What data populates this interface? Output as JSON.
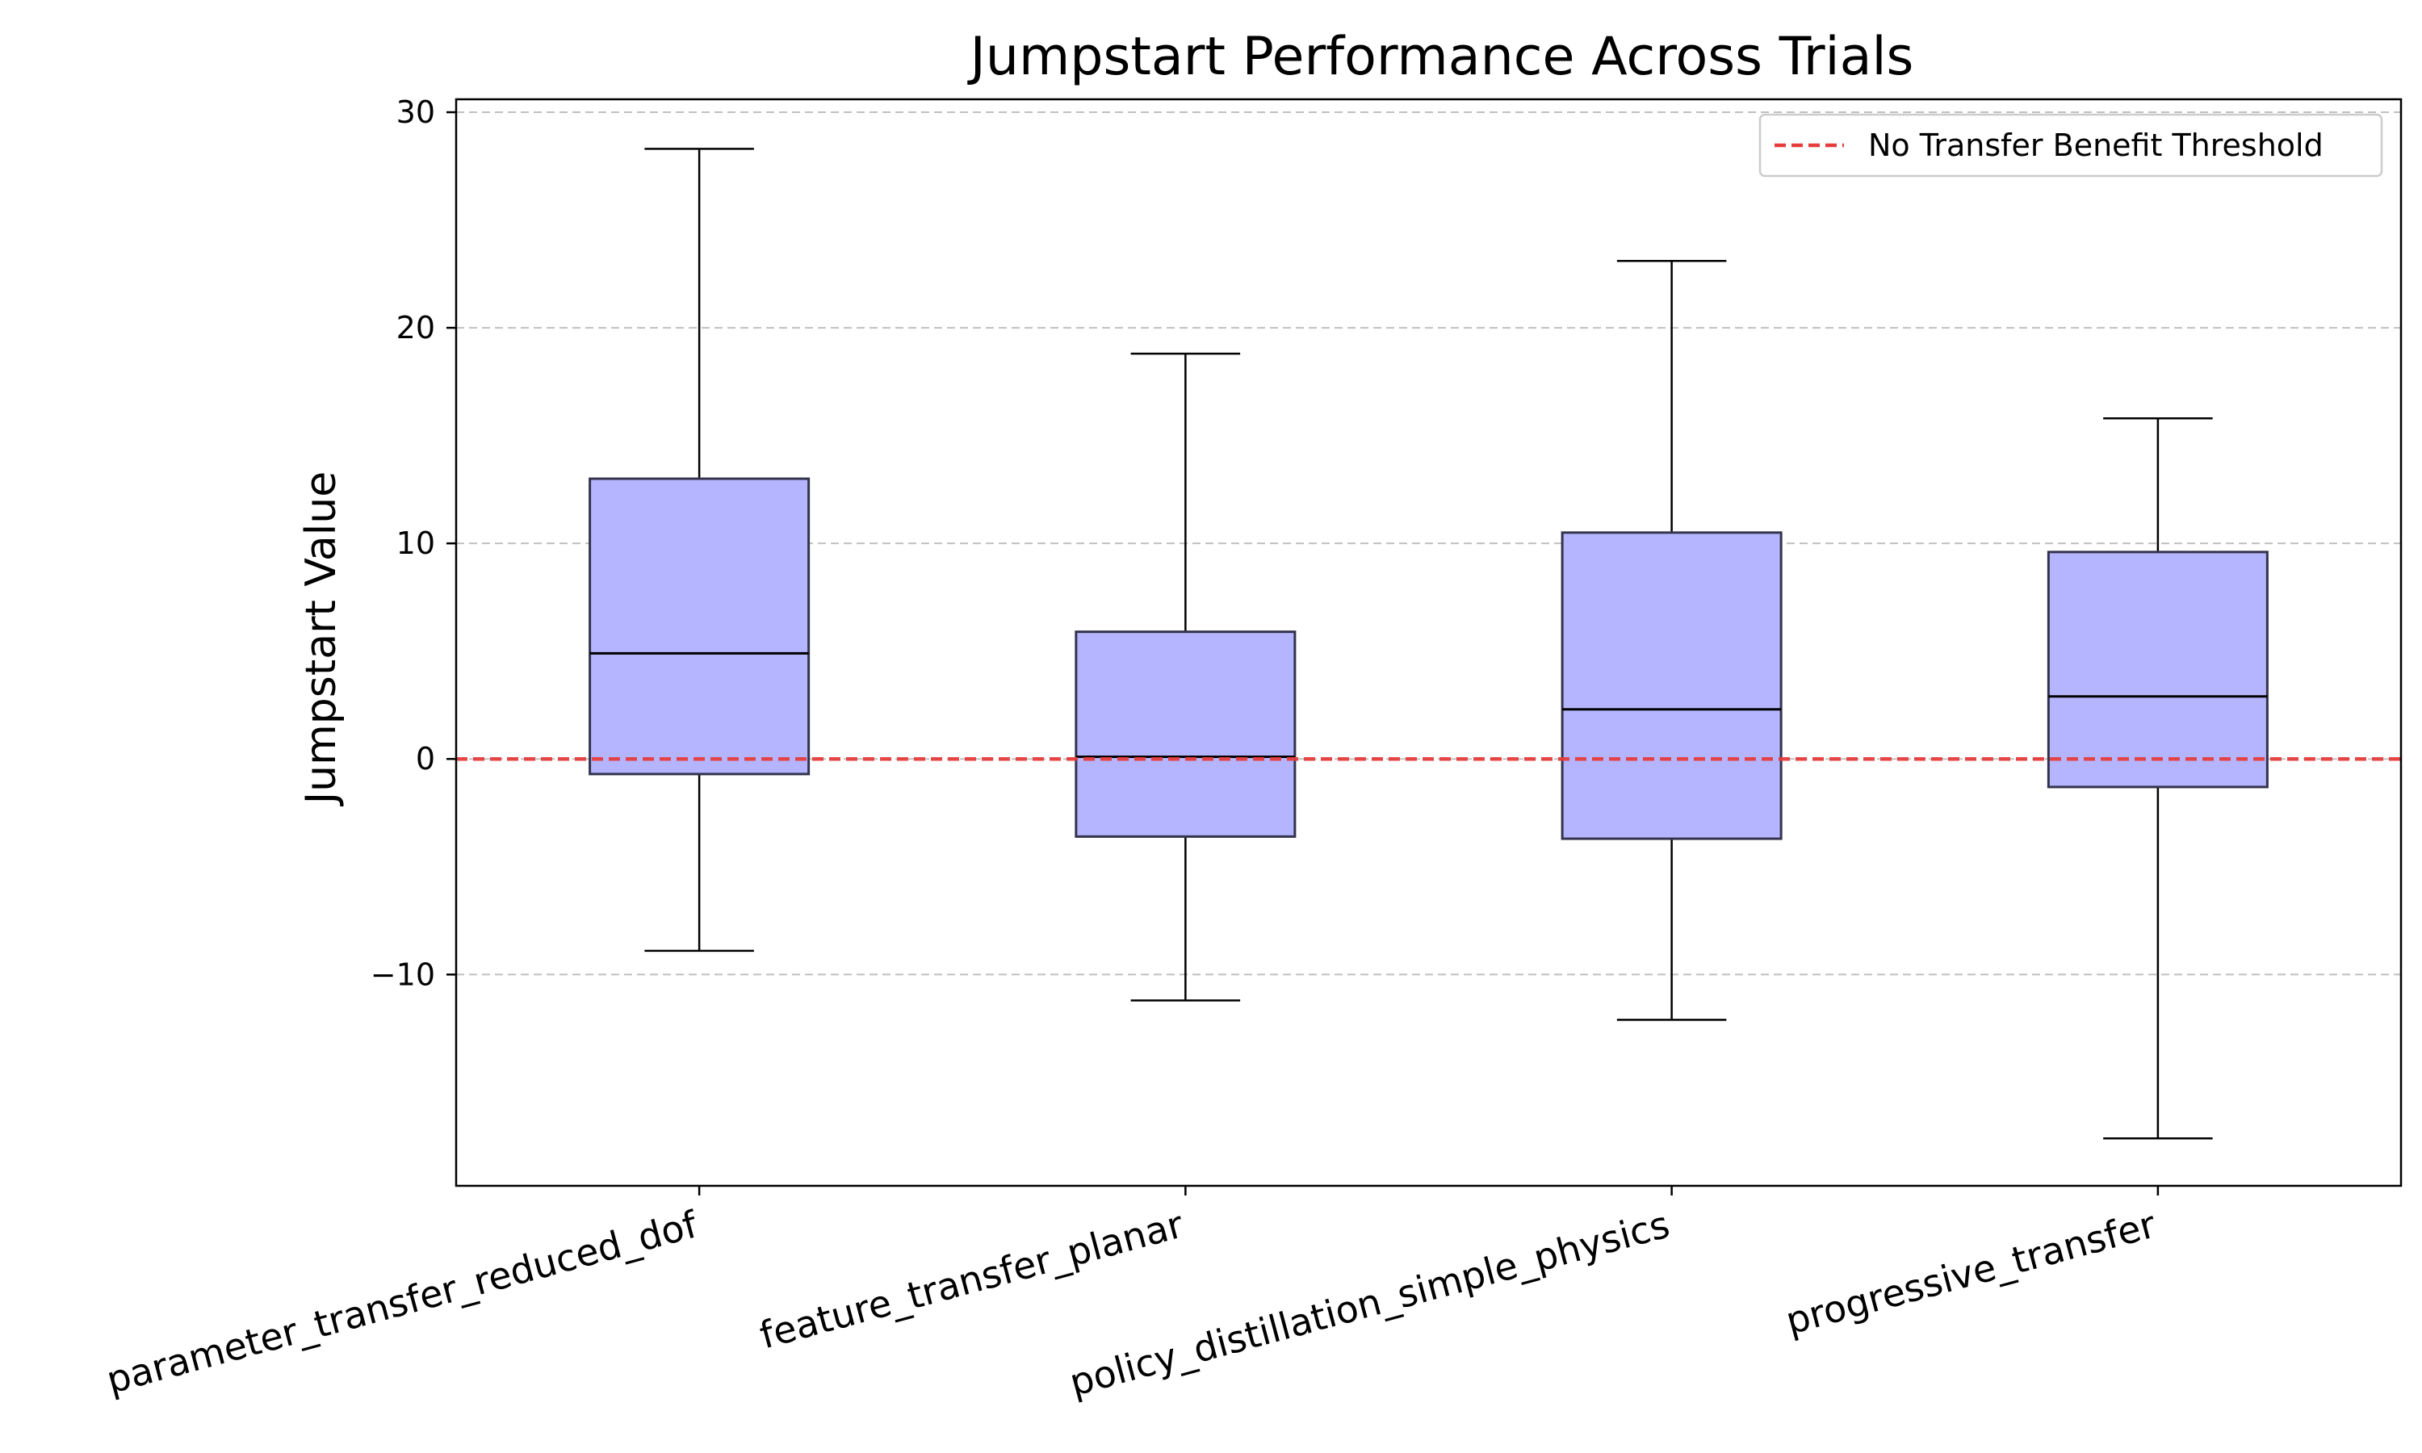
{
  "chart_data": {
    "type": "box",
    "title": "Jumpstart Performance Across Trials",
    "xlabel": "",
    "ylabel": "Jumpstart Value",
    "ylim": [
      -19.8,
      30.6
    ],
    "y_ticks": [
      -10,
      0,
      10,
      20,
      30
    ],
    "y_tick_labels": [
      "−10",
      "0",
      "10",
      "20",
      "30"
    ],
    "grid": "y, dashed",
    "categories": [
      "parameter_transfer_reduced_dof",
      "feature_transfer_planar",
      "policy_distillation_simple_physics",
      "progressive_transfer"
    ],
    "boxes": [
      {
        "whisker_low": -8.9,
        "q1": -0.7,
        "median": 4.9,
        "q3": 13.0,
        "whisker_high": 28.3
      },
      {
        "whisker_low": -11.2,
        "q1": -3.6,
        "median": 0.1,
        "q3": 5.9,
        "whisker_high": 18.8
      },
      {
        "whisker_low": -12.1,
        "q1": -3.7,
        "median": 2.3,
        "q3": 10.5,
        "whisker_high": 23.1
      },
      {
        "whisker_low": -17.6,
        "q1": -1.3,
        "median": 2.9,
        "q3": 9.6,
        "whisker_high": 15.8
      }
    ],
    "threshold": {
      "value": 0,
      "label": "No Transfer Benefit Threshold",
      "color": "#e63c3c"
    },
    "box_fill": "#b5b5ff",
    "legend_position": "upper right"
  }
}
